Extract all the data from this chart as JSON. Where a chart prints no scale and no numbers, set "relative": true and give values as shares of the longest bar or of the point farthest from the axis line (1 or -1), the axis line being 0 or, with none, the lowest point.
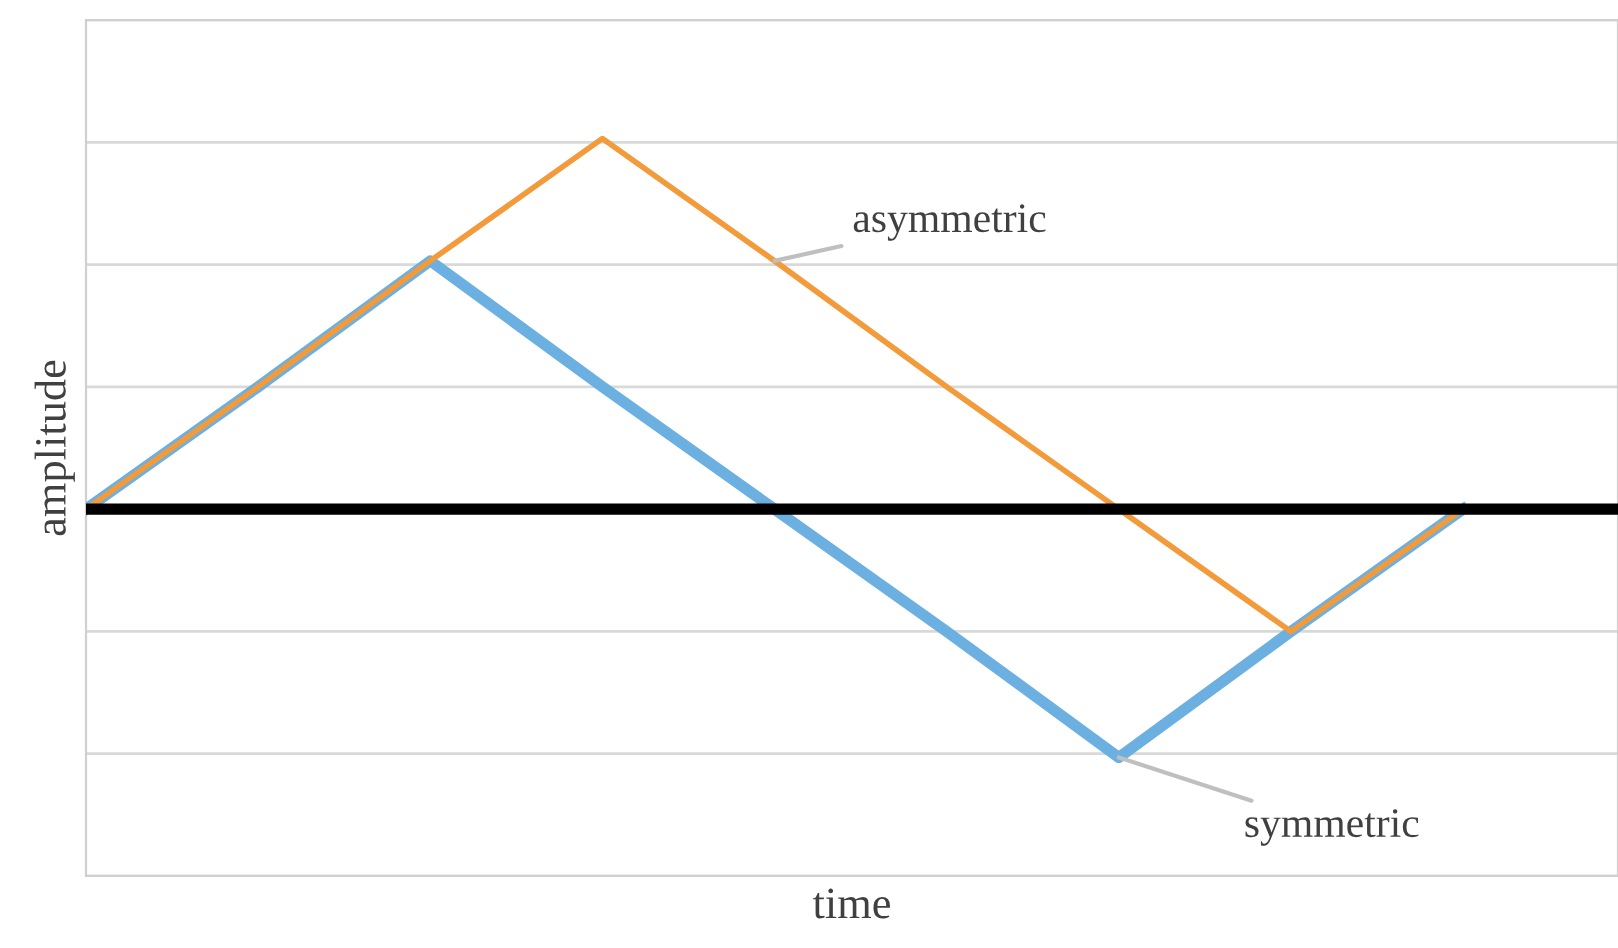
{
  "chart_data": {
    "type": "line",
    "relative": true,
    "xlabel": "time",
    "ylabel": "amplitude",
    "categories": [
      null,
      null,
      null,
      null,
      null,
      null,
      null,
      null,
      null
    ],
    "series": [
      {
        "name": "symmetric",
        "color": "#6cb0e2",
        "values": [
          0,
          0.33,
          0.67,
          0.33,
          0,
          -0.33,
          -0.67,
          -0.33,
          0
        ]
      },
      {
        "name": "asymmetric",
        "color": "#f39a3a",
        "values": [
          0,
          0.33,
          0.67,
          1,
          0.67,
          0.33,
          0,
          -0.33,
          0
        ]
      }
    ],
    "grid": "y",
    "legend": false,
    "marker": "none",
    "line_style": "solid",
    "tick_labels": false
  }
}
